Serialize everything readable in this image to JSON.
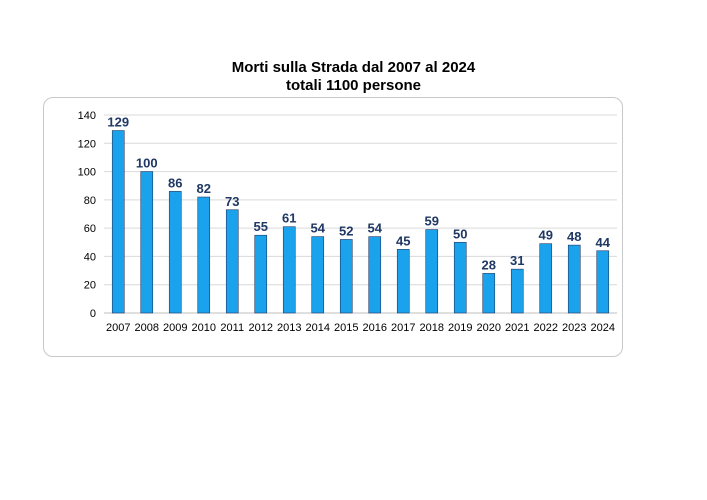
{
  "chart_data": {
    "type": "bar",
    "title": "Morti sulla Strada dal 2007 al 2024",
    "subtitle": "totali 1100 persone",
    "categories": [
      "2007",
      "2008",
      "2009",
      "2010",
      "2011",
      "2012",
      "2013",
      "2014",
      "2015",
      "2016",
      "2017",
      "2018",
      "2019",
      "2020",
      "2021",
      "2022",
      "2023",
      "2024"
    ],
    "values": [
      129,
      100,
      86,
      82,
      73,
      55,
      61,
      54,
      52,
      54,
      45,
      59,
      50,
      28,
      31,
      49,
      48,
      44
    ],
    "ylim": [
      0,
      140
    ],
    "yticks": [
      0,
      20,
      40,
      60,
      80,
      100,
      120,
      140
    ],
    "xlabel": "",
    "ylabel": "",
    "grid": true,
    "bar_color": "#1aa3ec",
    "bar_edge_color": "#1f3864",
    "label_color": "#1f3864"
  }
}
